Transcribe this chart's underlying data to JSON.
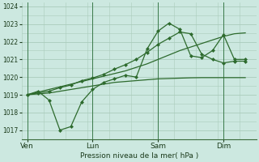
{
  "bg_color": "#cce8e0",
  "grid_color": "#aaccbb",
  "line_color": "#2d6a2d",
  "title": "Pression niveau de la mer( hPa )",
  "ylim": [
    1016.5,
    1024.2
  ],
  "yticks": [
    1017,
    1018,
    1019,
    1020,
    1021,
    1022,
    1023,
    1024
  ],
  "xtick_labels": [
    "Ven",
    "Lun",
    "Sam",
    "Dim"
  ],
  "xtick_positions": [
    0,
    24,
    48,
    72
  ],
  "vline_positions": [
    0,
    24,
    48,
    72
  ],
  "xlim": [
    -2,
    84
  ],
  "line1_x": [
    0,
    4,
    8,
    12,
    16,
    20,
    24,
    28,
    32,
    36,
    40,
    44,
    48,
    52,
    56,
    60,
    64,
    68,
    72,
    76,
    80
  ],
  "line1_y": [
    1019.0,
    1019.2,
    1018.7,
    1017.0,
    1017.2,
    1018.6,
    1019.3,
    1019.7,
    1019.9,
    1020.1,
    1020.0,
    1021.6,
    1022.6,
    1023.05,
    1022.7,
    1021.2,
    1021.1,
    1021.5,
    1022.4,
    1021.0,
    1021.0
  ],
  "line2_x": [
    0,
    4,
    8,
    12,
    16,
    20,
    24,
    28,
    32,
    36,
    40,
    44,
    48,
    52,
    56,
    60,
    64,
    68,
    72,
    76,
    80
  ],
  "line2_y": [
    1019.0,
    1019.05,
    1019.1,
    1019.2,
    1019.3,
    1019.4,
    1019.5,
    1019.6,
    1019.7,
    1019.75,
    1019.8,
    1019.85,
    1019.9,
    1019.92,
    1019.94,
    1019.96,
    1019.97,
    1019.97,
    1019.97,
    1019.97,
    1019.97
  ],
  "line3_x": [
    0,
    4,
    8,
    12,
    16,
    20,
    24,
    28,
    32,
    36,
    40,
    44,
    48,
    52,
    56,
    60,
    64,
    68,
    72,
    76,
    80
  ],
  "line3_y": [
    1019.0,
    1019.15,
    1019.3,
    1019.45,
    1019.6,
    1019.75,
    1019.9,
    1020.05,
    1020.2,
    1020.35,
    1020.55,
    1020.75,
    1021.0,
    1021.25,
    1021.5,
    1021.7,
    1021.9,
    1022.1,
    1022.3,
    1022.45,
    1022.5
  ],
  "line4_x": [
    0,
    4,
    8,
    12,
    16,
    20,
    24,
    28,
    32,
    36,
    40,
    44,
    48,
    52,
    56,
    60,
    64,
    68,
    72,
    76,
    80
  ],
  "line4_y": [
    1019.0,
    1019.1,
    1019.2,
    1019.4,
    1019.55,
    1019.8,
    1019.95,
    1020.15,
    1020.45,
    1020.7,
    1021.0,
    1021.4,
    1021.85,
    1022.2,
    1022.55,
    1022.45,
    1021.3,
    1021.0,
    1020.8,
    1020.9,
    1020.9
  ]
}
